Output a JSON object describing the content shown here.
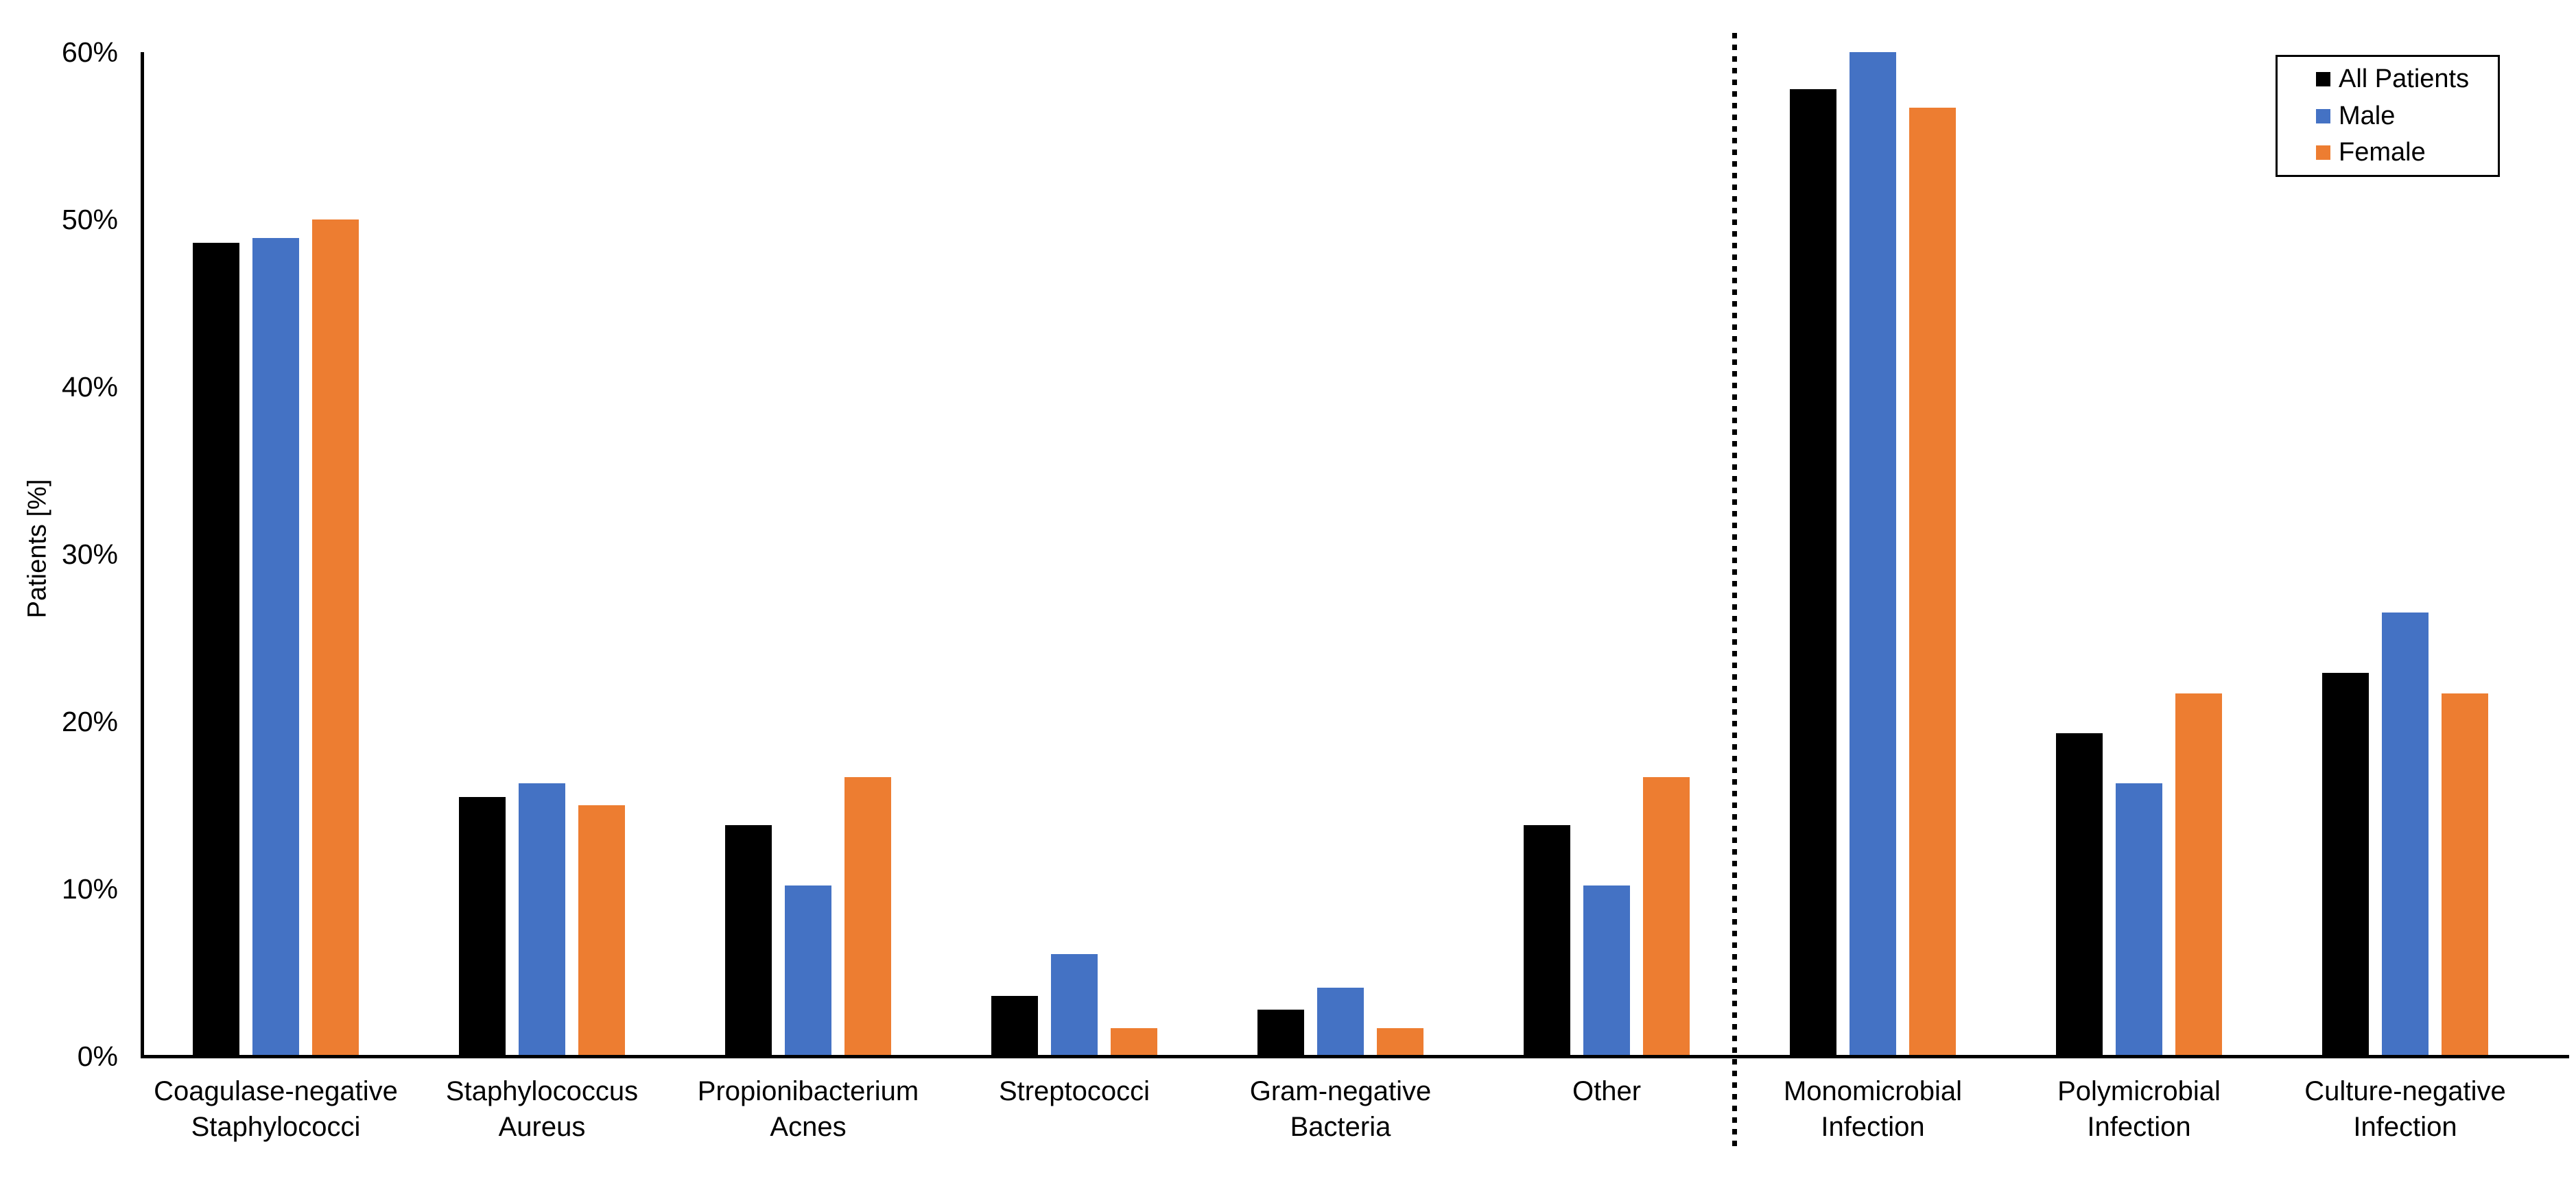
{
  "chart_data": {
    "type": "bar",
    "title": "",
    "xlabel": "",
    "ylabel": "Patients [%]",
    "ylim": [
      0,
      60
    ],
    "ytick_step": 10,
    "ytick_labels": [
      "0%",
      "10%",
      "20%",
      "30%",
      "40%",
      "50%",
      "60%"
    ],
    "grid": false,
    "legend_position": "top-right",
    "categories": [
      "Coagulase-negative Staphylococci",
      "Staphylococcus Aureus",
      "Propionibacterium Acnes",
      "Streptococci",
      "Gram-negative Bacteria",
      "Other",
      "Monomicrobial Infection",
      "Polymicrobial Infection",
      "Culture-negative Infection"
    ],
    "category_label_lines": [
      [
        "Coagulase-negative",
        "Staphylococci"
      ],
      [
        "Staphylococcus",
        "Aureus"
      ],
      [
        "Propionibacterium",
        "Acnes"
      ],
      [
        "Streptococci"
      ],
      [
        "Gram-negative",
        "Bacteria"
      ],
      [
        "Other"
      ],
      [
        "Monomicrobial",
        "Infection"
      ],
      [
        "Polymicrobial",
        "Infection"
      ],
      [
        "Culture-negative",
        "Infection"
      ]
    ],
    "series": [
      {
        "name": "All Patients",
        "color": "#000000",
        "values": [
          48.6,
          15.5,
          13.8,
          3.6,
          2.8,
          13.8,
          57.8,
          19.3,
          22.9
        ]
      },
      {
        "name": "Male",
        "color": "#4472C4",
        "values": [
          48.9,
          16.3,
          10.2,
          6.1,
          4.1,
          10.2,
          60.0,
          16.3,
          26.5
        ]
      },
      {
        "name": "Female",
        "color": "#ED7D31",
        "values": [
          50.0,
          15.0,
          16.7,
          1.7,
          1.7,
          16.7,
          56.7,
          21.7,
          21.7
        ]
      }
    ],
    "divider": {
      "after_category_index": 5,
      "style": "dotted-vertical-line",
      "color": "#000000"
    }
  }
}
